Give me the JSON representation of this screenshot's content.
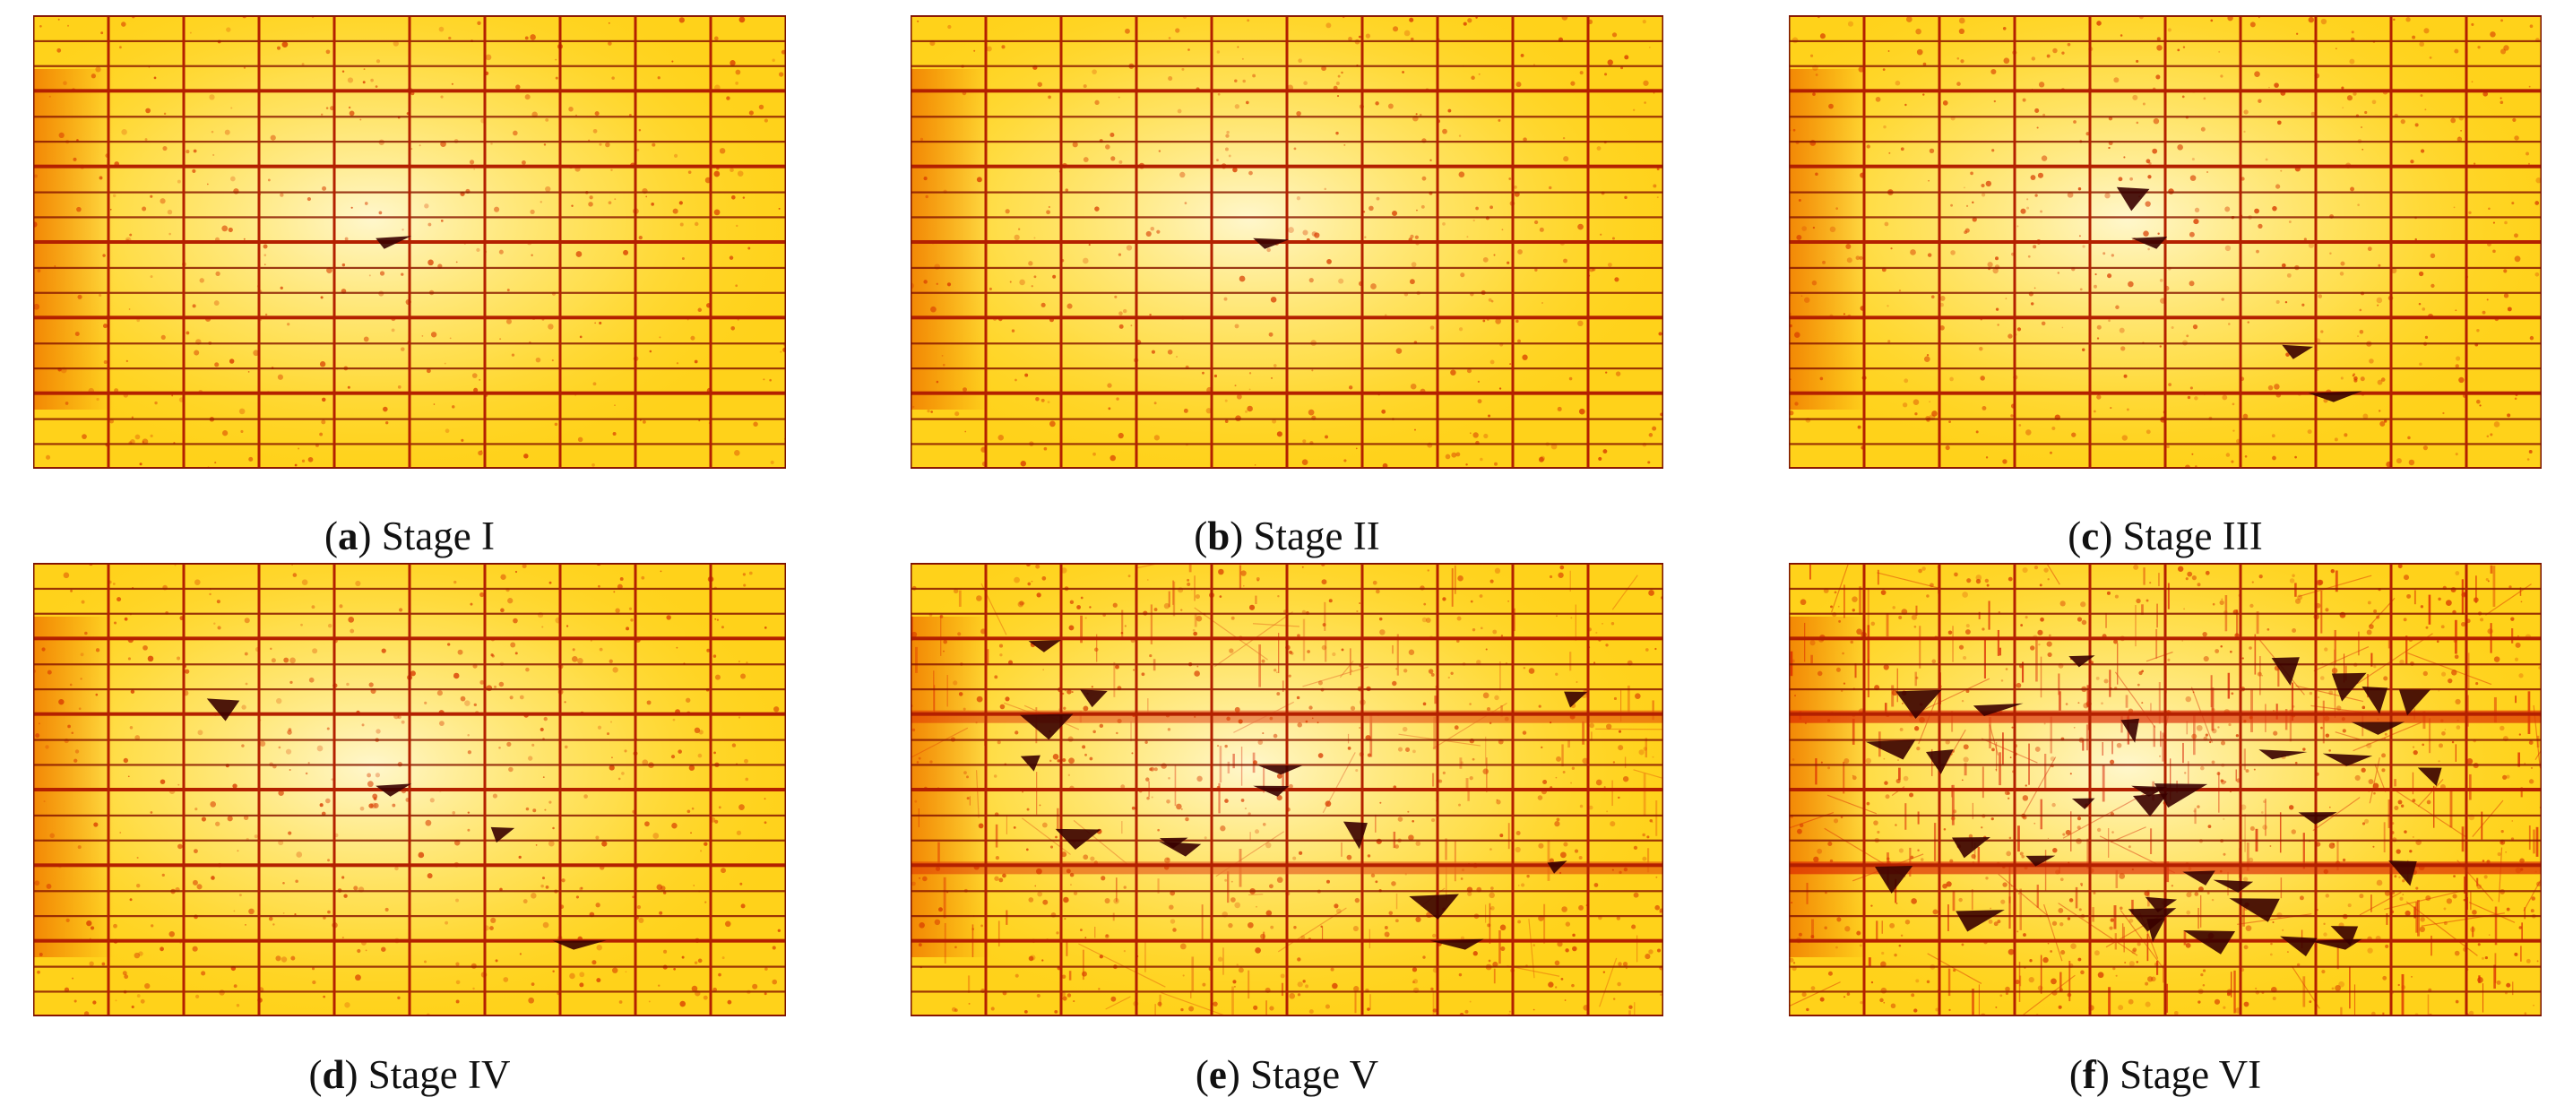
{
  "figure": {
    "panels": [
      {
        "id": "a",
        "letter": "a",
        "label": "Stage I",
        "damage": 0
      },
      {
        "id": "b",
        "letter": "b",
        "label": "Stage II",
        "damage": 0
      },
      {
        "id": "c",
        "letter": "c",
        "label": "Stage III",
        "damage": 1
      },
      {
        "id": "d",
        "letter": "d",
        "label": "Stage IV",
        "damage": 1
      },
      {
        "id": "e",
        "letter": "e",
        "label": "Stage V",
        "damage": 2
      },
      {
        "id": "f",
        "letter": "f",
        "label": "Stage VI",
        "damage": 3
      }
    ]
  },
  "colors": {
    "cell_base": "#ffd21a",
    "cell_light": "#fff4a8",
    "cell_bright": "#fffbe0",
    "busbar": "#8a1a00",
    "gap": "#b32000",
    "spot": "#d83a00",
    "damage_red": "#d81e00",
    "damage_dark": "#3a0000"
  }
}
